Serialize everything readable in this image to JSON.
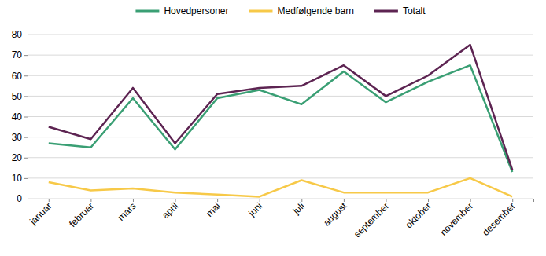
{
  "chart_data": {
    "type": "line",
    "categories": [
      "januar",
      "februar",
      "mars",
      "april",
      "mai",
      "juni",
      "juli",
      "august",
      "september",
      "oktober",
      "november",
      "desember"
    ],
    "series": [
      {
        "name": "Hovedpersoner",
        "color": "#3a9f74",
        "values": [
          27,
          25,
          49,
          24,
          49,
          53,
          46,
          62,
          47,
          57,
          65,
          13
        ]
      },
      {
        "name": "Medfølgende barn",
        "color": "#f7c948",
        "values": [
          8,
          4,
          5,
          3,
          2,
          1,
          9,
          3,
          3,
          3,
          10,
          1
        ]
      },
      {
        "name": "Totalt",
        "color": "#5d2452",
        "values": [
          35,
          29,
          54,
          27,
          51,
          54,
          55,
          65,
          50,
          60,
          75,
          14
        ]
      }
    ],
    "ylim": [
      0,
      80
    ],
    "yticks": [
      0,
      10,
      20,
      30,
      40,
      50,
      60,
      70,
      80
    ],
    "grid": true,
    "legend": "top"
  }
}
